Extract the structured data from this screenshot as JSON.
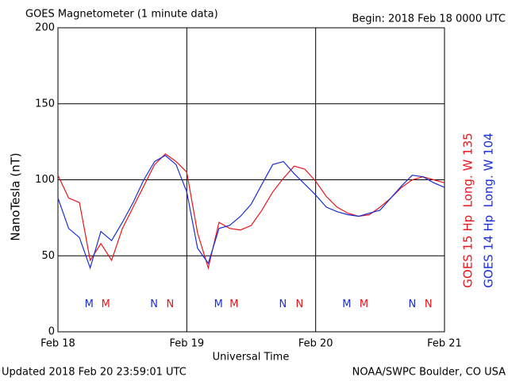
{
  "chart_data": {
    "type": "line",
    "title": "GOES Magnetometer (1 minute data)",
    "subtitle": "Begin:  2018 Feb 18 0000 UTC",
    "footer_left": "Updated 2018 Feb 20 23:59:01 UTC",
    "footer_right": "NOAA/SWPC Boulder, CO USA",
    "x_label": "Universal Time",
    "y_label": "NanoTesla (nT)",
    "x": [
      0,
      2,
      4,
      6,
      8,
      10,
      12,
      14,
      16,
      18,
      20,
      22,
      24,
      26,
      28,
      30,
      32,
      34,
      36,
      38,
      40,
      42,
      44,
      46,
      48,
      50,
      52,
      54,
      56,
      58,
      60,
      62,
      64,
      66,
      68,
      70,
      72
    ],
    "series": [
      {
        "name": "GOES 15 Hp  Long. W 135",
        "color": "#e8161b",
        "values": [
          103,
          88,
          85,
          47,
          58,
          47,
          68,
          82,
          96,
          110,
          117,
          112,
          105,
          65,
          42,
          72,
          68,
          67,
          70,
          80,
          92,
          101,
          109,
          107,
          99,
          89,
          82,
          78,
          76,
          77,
          82,
          88,
          95,
          100,
          102,
          100,
          98
        ]
      },
      {
        "name": "GOES 14 Hp  Long. W 104",
        "color": "#1a2fd6",
        "values": [
          88,
          68,
          62,
          42,
          66,
          60,
          72,
          85,
          100,
          112,
          116,
          110,
          92,
          55,
          45,
          68,
          70,
          76,
          84,
          97,
          110,
          112,
          104,
          97,
          90,
          82,
          79,
          77,
          76,
          78,
          80,
          88,
          96,
          103,
          102,
          98,
          95
        ]
      }
    ],
    "annotations": [
      {
        "text": "M",
        "x": 5.8,
        "series": 1
      },
      {
        "text": "M",
        "x": 8.9,
        "series": 0
      },
      {
        "text": "N",
        "x": 17.9,
        "series": 1
      },
      {
        "text": "N",
        "x": 20.9,
        "series": 0
      },
      {
        "text": "M",
        "x": 29.9,
        "series": 1
      },
      {
        "text": "M",
        "x": 32.8,
        "series": 0
      },
      {
        "text": "N",
        "x": 41.9,
        "series": 1
      },
      {
        "text": "N",
        "x": 45,
        "series": 0
      },
      {
        "text": "M",
        "x": 53.8,
        "series": 1
      },
      {
        "text": "M",
        "x": 57,
        "series": 0
      },
      {
        "text": "N",
        "x": 66,
        "series": 1
      },
      {
        "text": "N",
        "x": 69,
        "series": 0
      }
    ],
    "annotation_y": 18,
    "xlim": [
      0,
      72
    ],
    "xticks": [
      {
        "value": 0,
        "label": "Feb 18"
      },
      {
        "value": 24,
        "label": "Feb 19"
      },
      {
        "value": 48,
        "label": "Feb 20"
      },
      {
        "value": 72,
        "label": "Feb 21"
      }
    ],
    "ylim": [
      0,
      200
    ],
    "yticks": [
      0,
      50,
      100,
      150,
      200
    ],
    "grid": true
  }
}
